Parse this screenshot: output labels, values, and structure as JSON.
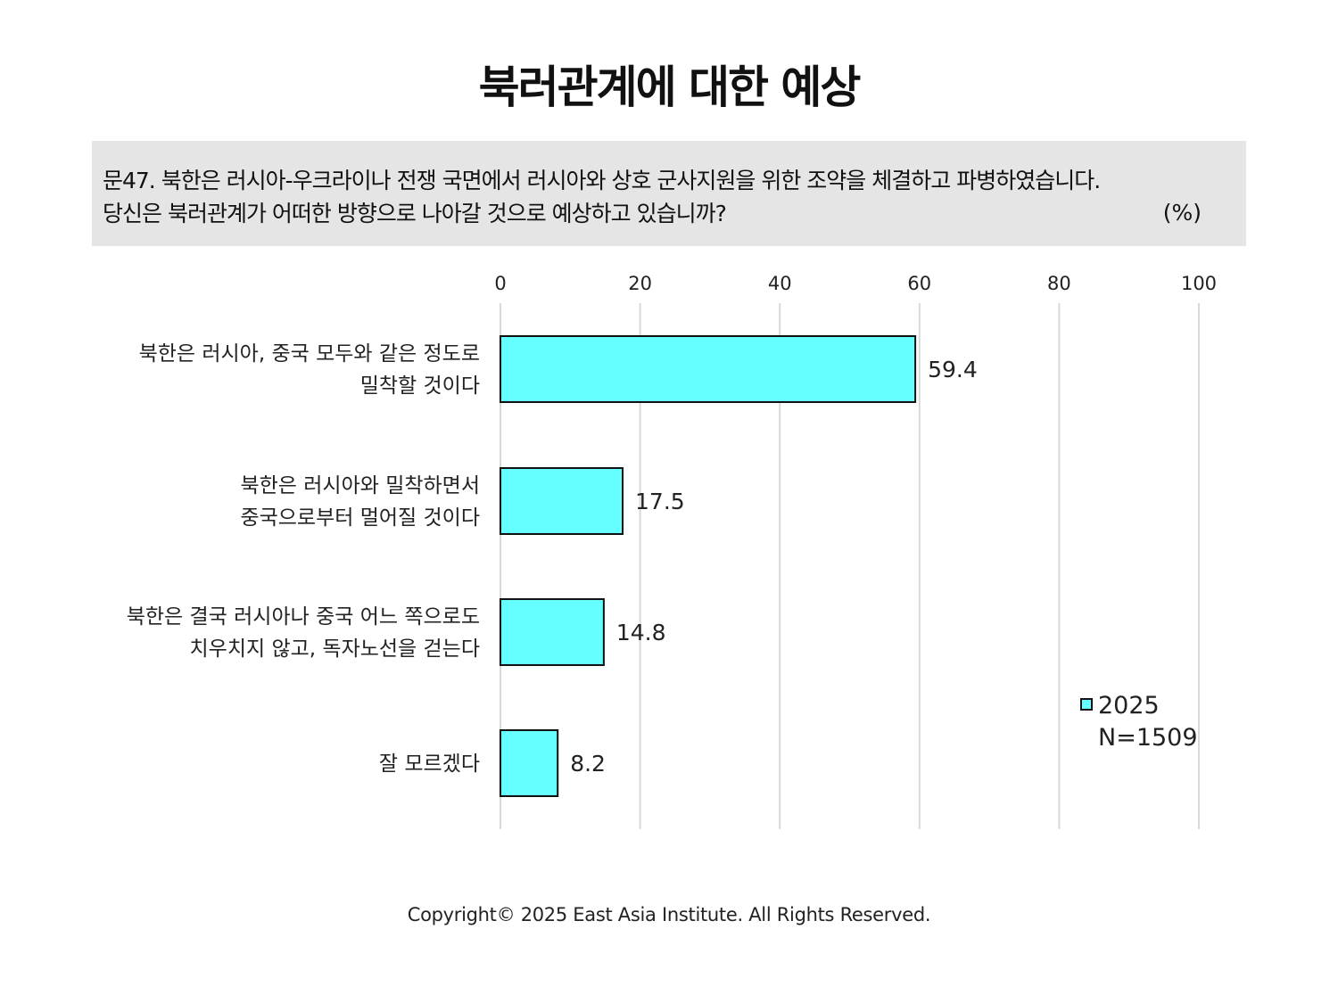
{
  "title": "북러관계에 대한 예상",
  "question": {
    "line1": "문47. 북한은 러시아-우크라이나 전쟁 국면에서 러시아와 상호 군사지원을 위한 조약을 체결하고 파병하였습니다.",
    "line2": "당신은 북러관계가 어떠한 방향으로 나아갈 것으로 예상하고 있습니까?",
    "unit": "(%)"
  },
  "chart_data": {
    "type": "bar",
    "orientation": "horizontal",
    "categories": [
      [
        "북한은 러시아, 중국 모두와 같은 정도로",
        "밀착할 것이다"
      ],
      [
        "북한은 러시아와 밀착하면서",
        "중국으로부터 멀어질 것이다"
      ],
      [
        "북한은 결국 러시아나 중국 어느 쪽으로도",
        "치우치지 않고, 독자노선을 걷는다"
      ],
      [
        "잘 모르겠다"
      ]
    ],
    "series": [
      {
        "name": "2025",
        "values": [
          59.4,
          17.5,
          14.8,
          8.2
        ],
        "color": "#66ffff"
      }
    ],
    "value_labels": [
      "59.4",
      "17.5",
      "14.8",
      "8.2"
    ],
    "xlim": [
      0,
      100
    ],
    "x_ticks": [
      0,
      20,
      40,
      60,
      80,
      100
    ],
    "x_tick_labels": [
      "0",
      "20",
      "40",
      "60",
      "80",
      "100"
    ],
    "x_axis_position": "top",
    "grid": true,
    "legend": {
      "position": "right",
      "label": "2025",
      "note": "N=1509"
    }
  },
  "copyright": "Copyright© 2025 East Asia Institute. All Rights Reserved."
}
